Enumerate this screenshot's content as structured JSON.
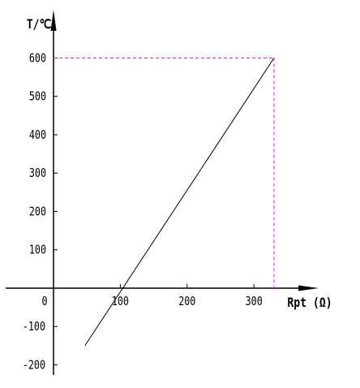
{
  "chart_data": {
    "type": "line",
    "xlabel": "Rpt (Ω)",
    "ylabel": "T/℃",
    "x_ticks": [
      {
        "value": 0,
        "label": "0"
      },
      {
        "value": 100,
        "label": "100"
      },
      {
        "value": 200,
        "label": "200"
      },
      {
        "value": 300,
        "label": "300"
      }
    ],
    "y_ticks": [
      {
        "value": 600,
        "label": "600"
      },
      {
        "value": 500,
        "label": "500"
      },
      {
        "value": 400,
        "label": "400"
      },
      {
        "value": 300,
        "label": "300"
      },
      {
        "value": 200,
        "label": "200"
      },
      {
        "value": 100,
        "label": "100"
      },
      {
        "value": -100,
        "label": "-100"
      },
      {
        "value": -200,
        "label": "-200"
      }
    ],
    "xlim": [
      0,
      400
    ],
    "ylim": [
      -220,
      600
    ],
    "series": [
      {
        "x": [
          47,
          330
        ],
        "y": [
          -150,
          600
        ]
      }
    ],
    "guide_lines": [
      {
        "x": [
          0,
          330
        ],
        "y": [
          600,
          600
        ]
      },
      {
        "x": [
          330,
          330
        ],
        "y": [
          600,
          0
        ]
      }
    ],
    "colors": {
      "line": "#000000",
      "guide": "#ff00ff",
      "axis": "#000000"
    },
    "grid": false
  }
}
